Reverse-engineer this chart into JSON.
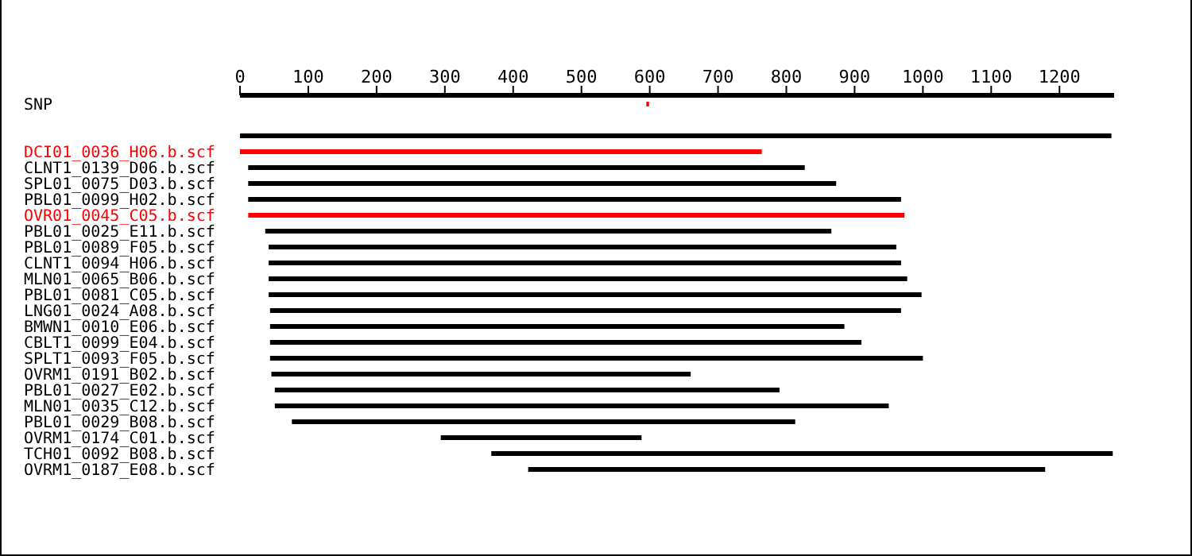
{
  "chart_data": {
    "type": "bar",
    "orientation": "horizontal",
    "categories": [
      null,
      null,
      null,
      "DCI01_0036_H06.b.scf",
      "CLNT1_0139_D06.b.scf",
      "SPL01_0075_D03.b.scf",
      "PBL01_0099_H02.b.scf",
      "OVR01_0045_C05.b.scf",
      "PBL01_0025_E11.b.scf",
      "PBL01_0089_F05.b.scf",
      "CLNT1_0094_H06.b.scf",
      "MLN01_0065_B06.b.scf",
      "PBL01_0081_C05.b.scf",
      "LNG01_0024_A08.b.scf",
      "BMWN1_0010_E06.b.scf",
      "CBLT1_0099_E04.b.scf",
      "SPLT1_0093_F05.b.scf",
      "OVRM1_0191_B02.b.scf",
      "PBL01_0027_E02.b.scf",
      "MLN01_0035_C12.b.scf",
      "PBL01_0029_B08.b.scf",
      "OVRM1_0174_C01.b.scf",
      "TCH01_0092_B08.b.scf",
      "OVRM1_0187_E08.b.scf"
    ],
    "series": [
      {
        "name": "SNP",
        "color": "#ff0000",
        "base": [
          595,
          null,
          null,
          null,
          null,
          null,
          null,
          null,
          null,
          null,
          null,
          null,
          null,
          null,
          null,
          null,
          null,
          null,
          null,
          null,
          null,
          null,
          null,
          null
        ],
        "values": [
          4,
          null,
          null,
          null,
          null,
          null,
          null,
          null,
          null,
          null,
          null,
          null,
          null,
          null,
          null,
          null,
          null,
          null,
          null,
          null,
          null,
          null,
          null,
          null
        ]
      },
      {
        "colors": [
          null,
          null,
          "#000000",
          "#ff0000",
          "#000000",
          "#000000",
          "#000000",
          "#ff0000",
          "#000000",
          "#000000",
          "#000000",
          "#000000",
          "#000000",
          "#000000",
          "#000000",
          "#000000",
          "#000000",
          "#000000",
          "#000000",
          "#000000",
          "#000000",
          "#000000",
          "#000000",
          "#000000"
        ],
        "base": [
          null,
          null,
          0,
          0,
          12,
          12,
          12,
          12,
          37,
          42,
          42,
          42,
          42,
          44,
          44,
          44,
          44,
          46,
          51,
          51,
          76,
          294,
          368,
          422
        ],
        "values": [
          null,
          null,
          1276,
          764,
          815,
          861,
          956,
          961,
          829,
          919,
          926,
          935,
          956,
          924,
          841,
          866,
          956,
          614,
          739,
          899,
          737,
          294,
          910,
          757
        ]
      }
    ],
    "xlim": [
      0,
      1280
    ],
    "xticks": [
      0,
      100,
      200,
      300,
      400,
      500,
      600,
      700,
      800,
      900,
      1000,
      1100,
      1200
    ]
  }
}
